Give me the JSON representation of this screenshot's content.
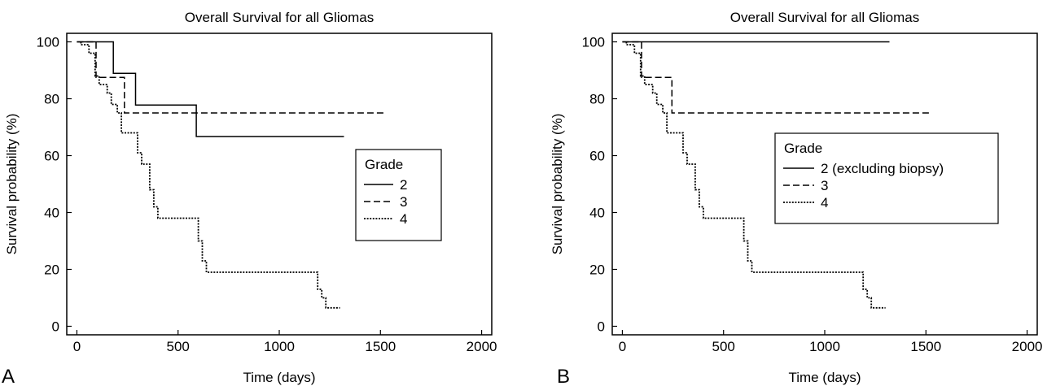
{
  "panel_labels": [
    "A",
    "B"
  ],
  "chart_data": [
    {
      "type": "line",
      "step": true,
      "title": "Overall Survival for all Gliomas",
      "xlabel": "Time (days)",
      "ylabel": "Survival probability (%)",
      "xlim": [
        -50,
        2050
      ],
      "ylim": [
        -3,
        103
      ],
      "xticks": [
        0,
        500,
        1000,
        1500,
        2000
      ],
      "yticks": [
        0,
        20,
        40,
        60,
        80,
        100
      ],
      "grid": false,
      "legend": {
        "title": "Grade",
        "position": "center-right"
      },
      "series": [
        {
          "name": "2",
          "style": "solid",
          "x": [
            0,
            180,
            180,
            290,
            290,
            590,
            590,
            1320
          ],
          "y": [
            100,
            100,
            88.9,
            88.9,
            77.8,
            77.8,
            66.7,
            66.7
          ]
        },
        {
          "name": "3",
          "style": "dashed",
          "x": [
            0,
            95,
            95,
            235,
            235,
            1530
          ],
          "y": [
            100,
            100,
            87.5,
            87.5,
            75,
            75
          ]
        },
        {
          "name": "4",
          "style": "dotted",
          "x": [
            20,
            20,
            60,
            60,
            90,
            90,
            110,
            110,
            150,
            150,
            170,
            170,
            200,
            200,
            220,
            220,
            300,
            300,
            320,
            320,
            360,
            360,
            380,
            380,
            400,
            400,
            600,
            600,
            620,
            620,
            640,
            640,
            1190,
            1190,
            1210,
            1210,
            1230,
            1230,
            1300
          ],
          "y": [
            100,
            99,
            99,
            96,
            96,
            88,
            88,
            85,
            85,
            82,
            82,
            78,
            78,
            75,
            75,
            68,
            68,
            61,
            61,
            57,
            57,
            48,
            48,
            42,
            42,
            38,
            38,
            30,
            30,
            23,
            23,
            19,
            19,
            13,
            13,
            10,
            10,
            6.5,
            6.5
          ]
        }
      ]
    },
    {
      "type": "line",
      "step": true,
      "title": "Overall Survival for all Gliomas",
      "xlabel": "Time (days)",
      "ylabel": "Survival probability (%)",
      "xlim": [
        -50,
        2050
      ],
      "ylim": [
        -3,
        103
      ],
      "xticks": [
        0,
        500,
        1000,
        1500,
        2000
      ],
      "yticks": [
        0,
        20,
        40,
        60,
        80,
        100
      ],
      "grid": false,
      "legend": {
        "title": "Grade",
        "position": "center-right"
      },
      "series": [
        {
          "name": "2 (excluding biopsy)",
          "style": "solid",
          "x": [
            0,
            1320
          ],
          "y": [
            100,
            100
          ]
        },
        {
          "name": "3",
          "style": "dashed",
          "x": [
            0,
            95,
            95,
            245,
            245,
            1530
          ],
          "y": [
            100,
            100,
            87.5,
            87.5,
            75,
            75
          ]
        },
        {
          "name": "4",
          "style": "dotted",
          "x": [
            20,
            20,
            60,
            60,
            90,
            90,
            110,
            110,
            150,
            150,
            170,
            170,
            200,
            200,
            220,
            220,
            300,
            300,
            320,
            320,
            360,
            360,
            380,
            380,
            400,
            400,
            600,
            600,
            620,
            620,
            640,
            640,
            1190,
            1190,
            1210,
            1210,
            1230,
            1230,
            1300
          ],
          "y": [
            100,
            99,
            99,
            96,
            96,
            88,
            88,
            85,
            85,
            82,
            82,
            78,
            78,
            75,
            75,
            68,
            68,
            61,
            61,
            57,
            57,
            48,
            48,
            42,
            42,
            38,
            38,
            30,
            30,
            23,
            23,
            19,
            19,
            13,
            13,
            10,
            10,
            6.5,
            6.5
          ]
        }
      ]
    }
  ]
}
